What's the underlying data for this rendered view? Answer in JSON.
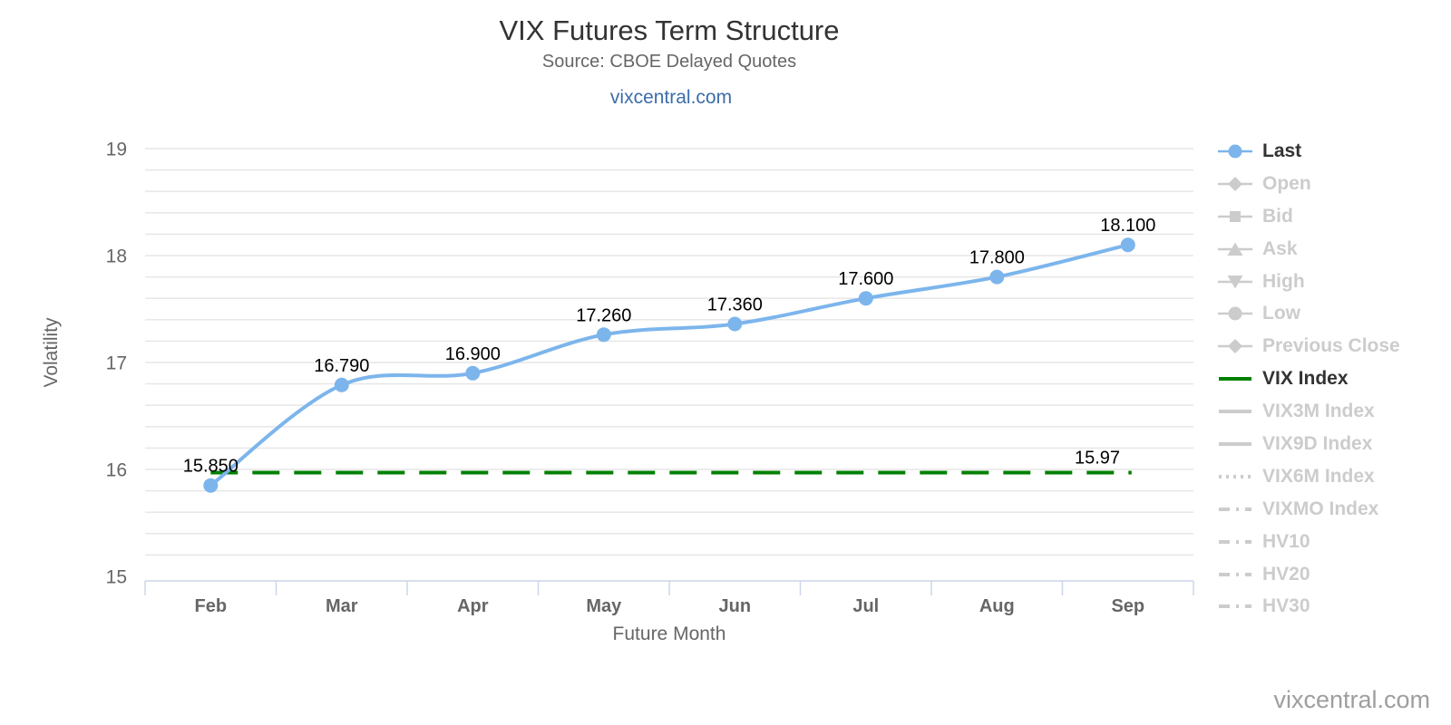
{
  "header": {
    "title": "VIX Futures Term Structure",
    "subtitle": "Source: CBOE Delayed Quotes",
    "link": "vixcentral.com"
  },
  "watermark": "vixcentral.com",
  "chart_data": {
    "type": "line",
    "title": "VIX Futures Term Structure",
    "subtitle": "Source: CBOE Delayed Quotes",
    "xlabel": "Future Month",
    "ylabel": "Volatility",
    "x_categories": [
      "Feb",
      "Mar",
      "Apr",
      "May",
      "Jun",
      "Jul",
      "Aug",
      "Sep"
    ],
    "ylim": [
      15,
      19
    ],
    "y_ticks": [
      15,
      16,
      17,
      18,
      19
    ],
    "minor_grid_step": 0.2,
    "grid": true,
    "legend_position": "right",
    "series": [
      {
        "name": "Last",
        "type": "spline",
        "color": "#7cb5ec",
        "marker": "circle",
        "values": [
          15.85,
          16.79,
          16.9,
          17.26,
          17.36,
          17.6,
          17.8,
          18.1
        ],
        "data_labels": [
          "15.850",
          "16.790",
          "16.900",
          "17.260",
          "17.360",
          "17.600",
          "17.800",
          "18.100"
        ]
      },
      {
        "name": "VIX Index",
        "type": "horizontal-dashed-line",
        "color": "#008000",
        "value": 15.97,
        "data_label": "15.97"
      }
    ]
  },
  "legend": {
    "inactive_color": "#cccccc",
    "active_text_color": "#333333",
    "items": [
      {
        "label": "Last",
        "marker": "circle",
        "active": true,
        "color": "#7cb5ec"
      },
      {
        "label": "Open",
        "marker": "diamond",
        "active": false
      },
      {
        "label": "Bid",
        "marker": "square",
        "active": false
      },
      {
        "label": "Ask",
        "marker": "triangle-up",
        "active": false
      },
      {
        "label": "High",
        "marker": "triangle-down",
        "active": false
      },
      {
        "label": "Low",
        "marker": "circle",
        "active": false
      },
      {
        "label": "Previous Close",
        "marker": "diamond",
        "active": false
      },
      {
        "label": "VIX Index",
        "marker": "line-solid",
        "active": true,
        "color": "#008000"
      },
      {
        "label": "VIX3M Index",
        "marker": "line-solid",
        "active": false
      },
      {
        "label": "VIX9D Index",
        "marker": "line-solid",
        "active": false
      },
      {
        "label": "VIX6M Index",
        "marker": "line-dotted",
        "active": false
      },
      {
        "label": "VIXMO Index",
        "marker": "line-dashdot",
        "active": false
      },
      {
        "label": "HV10",
        "marker": "line-dashdot",
        "active": false
      },
      {
        "label": "HV20",
        "marker": "line-dashdot",
        "active": false
      },
      {
        "label": "HV30",
        "marker": "line-dashdot",
        "active": false
      }
    ]
  },
  "colors": {
    "grid": "#e5e5e5",
    "axis_line": "#ccd6eb",
    "axis_text": "#666666",
    "data_label": "#000000",
    "title": "#333333",
    "subtitle": "#666666",
    "link": "#3c6da8",
    "watermark": "#9e9e9e"
  }
}
